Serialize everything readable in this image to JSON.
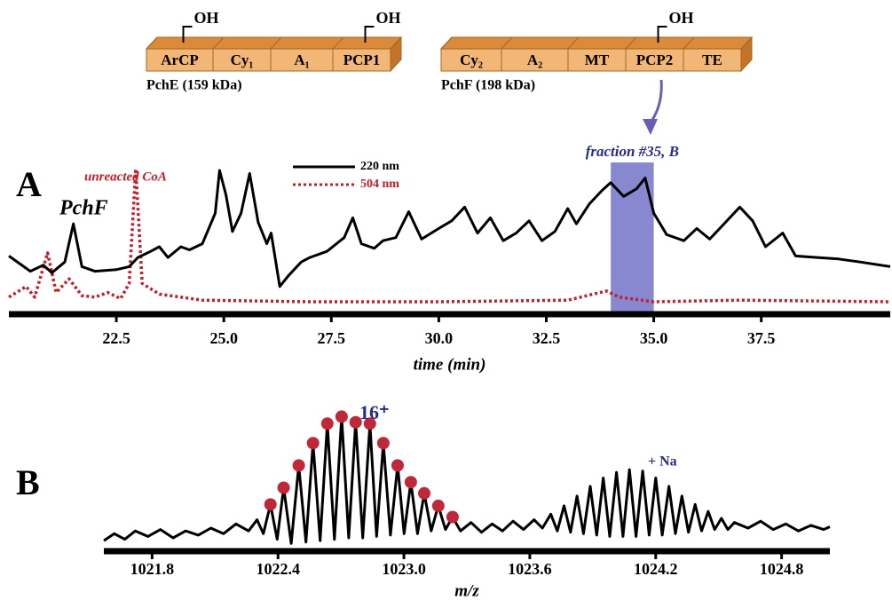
{
  "diagram": {
    "proteins": [
      {
        "name": "PchE (159 kDa)",
        "domains": [
          {
            "label": "ArCP",
            "group": "OH"
          },
          {
            "label": "Cy₁"
          },
          {
            "label": "A₁"
          },
          {
            "label": "PCP1",
            "group": "OH"
          }
        ]
      },
      {
        "name": "PchF (198 kDa)",
        "domains": [
          {
            "label": "Cy₂"
          },
          {
            "label": "A₂"
          },
          {
            "label": "MT"
          },
          {
            "label": "PCP2",
            "group": "OH"
          },
          {
            "label": "TE"
          }
        ]
      }
    ]
  },
  "chart_data": [
    {
      "type": "line",
      "panel": "A",
      "xlabel": "time (min)",
      "xlim": [
        20,
        40.5
      ],
      "ylim": [
        0,
        100
      ],
      "xticks": [
        22.5,
        {
          "value": 25,
          "label": "25.0"
        },
        27.5,
        {
          "value": 30,
          "label": "30.0"
        },
        32.5,
        {
          "value": 35,
          "label": "35.0"
        },
        37.5
      ],
      "legend": "upper center",
      "annotations": [
        "PchF",
        "unreacted CoA"
      ],
      "highlight": {
        "x": [
          34.0,
          35.0
        ],
        "label": "fraction #35, B",
        "color": "#7b7bcc"
      },
      "series": [
        {
          "name": "504 nm",
          "color": "#c0202a",
          "dash": "dotted",
          "x": [
            20.0,
            20.4,
            20.6,
            20.9,
            21.1,
            21.4,
            21.7,
            22.0,
            22.3,
            22.6,
            22.8,
            22.95,
            23.1,
            23.5,
            24.5,
            27,
            30,
            33,
            33.9,
            34.2,
            35,
            37,
            40.5
          ],
          "values": [
            10,
            17,
            10,
            39,
            13,
            22,
            11,
            10,
            13,
            9,
            19,
            94,
            19,
            12,
            8,
            7,
            7,
            8,
            14,
            10,
            7,
            8,
            7
          ]
        },
        {
          "name": "220 nm",
          "color": "#000000",
          "x": [
            20.0,
            20.5,
            20.8,
            21.0,
            21.3,
            21.5,
            21.7,
            22.0,
            22.5,
            22.8,
            23.0,
            23.3,
            23.5,
            23.7,
            24.0,
            24.2,
            24.5,
            24.8,
            24.9,
            25.05,
            25.2,
            25.4,
            25.6,
            25.8,
            26.0,
            26.1,
            26.3,
            26.5,
            26.8,
            27.0,
            27.4,
            27.8,
            28.0,
            28.2,
            28.5,
            28.7,
            29.0,
            29.3,
            29.6,
            30.0,
            30.3,
            30.6,
            30.9,
            31.2,
            31.5,
            31.8,
            32.1,
            32.4,
            32.7,
            33.0,
            33.2,
            33.5,
            33.8,
            34.0,
            34.3,
            34.6,
            34.8,
            35.0,
            35.3,
            35.7,
            36.0,
            36.3,
            36.6,
            37.0,
            37.3,
            37.6,
            38.0,
            38.3,
            38.8,
            39.3,
            39.8,
            40.5
          ],
          "values": [
            37,
            27,
            31,
            26,
            33,
            58,
            30,
            27,
            28,
            30,
            36,
            40,
            43,
            36,
            43,
            41,
            45,
            65,
            93,
            77,
            53,
            65,
            91,
            59,
            45,
            52,
            17,
            24,
            33,
            36,
            40,
            49,
            62,
            45,
            42,
            47,
            49,
            66,
            48,
            55,
            60,
            69,
            52,
            62,
            47,
            52,
            60,
            47,
            53,
            68,
            58,
            71,
            80,
            85,
            76,
            81,
            88,
            65,
            51,
            47,
            55,
            48,
            57,
            69,
            60,
            43,
            52,
            37,
            36,
            35,
            33,
            30
          ]
        }
      ]
    },
    {
      "type": "line",
      "panel": "B",
      "xlabel": "m/z",
      "xlim": [
        1021.57,
        1025.03
      ],
      "ylim": [
        0,
        100
      ],
      "xticks": [
        1021.8,
        1022.4,
        {
          "value": 1023,
          "label": "1023.0"
        },
        1023.6,
        1024.2,
        1024.8
      ],
      "annotations": [
        "16⁺",
        "+ Na"
      ],
      "series": [
        {
          "color": "#000000",
          "x": [
            1021.57,
            1021.62,
            1021.67,
            1021.72,
            1021.78,
            1021.84,
            1021.9,
            1021.96,
            1022.02,
            1022.08,
            1022.14,
            1022.2,
            1022.26,
            1022.3,
            1022.33,
            1022.364,
            1022.396,
            1022.427,
            1022.463,
            1022.499,
            1022.533,
            1022.567,
            1022.601,
            1022.635,
            1022.669,
            1022.703,
            1022.737,
            1022.77,
            1022.804,
            1022.838,
            1022.87,
            1022.902,
            1022.936,
            1022.97,
            1023.001,
            1023.033,
            1023.065,
            1023.097,
            1023.13,
            1023.164,
            1023.198,
            1023.232,
            1023.27,
            1023.32,
            1023.37,
            1023.42,
            1023.47,
            1023.52,
            1023.57,
            1023.62,
            1023.66,
            1023.7,
            1023.731,
            1023.763,
            1023.794,
            1023.825,
            1023.856,
            1023.888,
            1023.919,
            1023.95,
            1023.981,
            1024.013,
            1024.044,
            1024.075,
            1024.106,
            1024.138,
            1024.169,
            1024.2,
            1024.231,
            1024.263,
            1024.294,
            1024.325,
            1024.356,
            1024.388,
            1024.419,
            1024.45,
            1024.481,
            1024.513,
            1024.544,
            1024.575,
            1024.64,
            1024.7,
            1024.76,
            1024.82,
            1024.88,
            1024.94,
            1025.0,
            1025.03
          ],
          "values": [
            5,
            10,
            6,
            12,
            8,
            13,
            7,
            12,
            9,
            14,
            10,
            17,
            12,
            20,
            10,
            31,
            6,
            43,
            3,
            59,
            4,
            75,
            5,
            89,
            6,
            94,
            7,
            90,
            7,
            89,
            8,
            75,
            9,
            59,
            10,
            47,
            10,
            39,
            12,
            30,
            13,
            22,
            12,
            18,
            11,
            17,
            12,
            19,
            13,
            20,
            14,
            24,
            12,
            30,
            11,
            37,
            10,
            44,
            9,
            50,
            8,
            54,
            8,
            56,
            8,
            55,
            9,
            50,
            9,
            44,
            10,
            37,
            11,
            31,
            12,
            26,
            13,
            21,
            13,
            18,
            14,
            19,
            13,
            17,
            12,
            16,
            13,
            15
          ]
        },
        {
          "color": "#c0283a",
          "marker": "circle",
          "x": [
            1022.364,
            1022.427,
            1022.499,
            1022.567,
            1022.635,
            1022.703,
            1022.77,
            1022.838,
            1022.902,
            1022.97,
            1023.033,
            1023.097,
            1023.164,
            1023.232
          ],
          "values": [
            31,
            43,
            59,
            75,
            89,
            94,
            90,
            89,
            75,
            59,
            47,
            39,
            30,
            22
          ]
        }
      ]
    }
  ]
}
